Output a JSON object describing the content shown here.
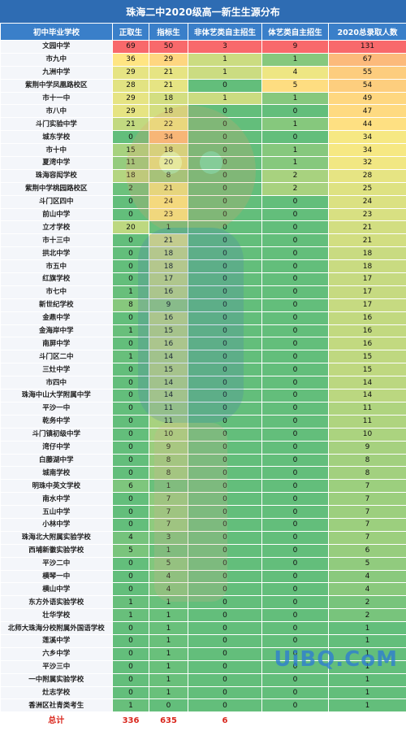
{
  "title": "珠海二中2020级高一新生生源分布",
  "columns": [
    "初中毕业学校",
    "正取生",
    "指标生",
    "非体艺类自主招生",
    "体艺类自主招生",
    "2020总录取人数"
  ],
  "rows": [
    {
      "school": "文园中学",
      "v": [
        "69",
        "50",
        "3",
        "9",
        "131"
      ]
    },
    {
      "school": "市九中",
      "v": [
        "36",
        "29",
        "1",
        "1",
        "67"
      ]
    },
    {
      "school": "九洲中学",
      "v": [
        "29",
        "21",
        "1",
        "4",
        "55"
      ]
    },
    {
      "school": "紫荆中学凤凰路校区",
      "v": [
        "28",
        "21",
        "0",
        "5",
        "54"
      ]
    },
    {
      "school": "市十一中",
      "v": [
        "29",
        "18",
        "1",
        "1",
        "49"
      ]
    },
    {
      "school": "市八中",
      "v": [
        "29",
        "18",
        "0",
        "0",
        "47"
      ]
    },
    {
      "school": "斗门实验中学",
      "v": [
        "21",
        "22",
        "0",
        "1",
        "44"
      ]
    },
    {
      "school": "城东学校",
      "v": [
        "0",
        "34",
        "0",
        "0",
        "34"
      ]
    },
    {
      "school": "市十中",
      "v": [
        "15",
        "18",
        "0",
        "1",
        "34"
      ]
    },
    {
      "school": "夏湾中学",
      "v": [
        "11",
        "20",
        "0",
        "1",
        "32"
      ]
    },
    {
      "school": "珠海容闳学校",
      "v": [
        "18",
        "8",
        "0",
        "2",
        "28"
      ]
    },
    {
      "school": "紫荆中学桃园路校区",
      "v": [
        "2",
        "21",
        "0",
        "2",
        "25"
      ]
    },
    {
      "school": "斗门区四中",
      "v": [
        "0",
        "24",
        "0",
        "0",
        "24"
      ]
    },
    {
      "school": "前山中学",
      "v": [
        "0",
        "23",
        "0",
        "0",
        "23"
      ]
    },
    {
      "school": "立才学校",
      "v": [
        "20",
        "1",
        "0",
        "0",
        "21"
      ]
    },
    {
      "school": "市十三中",
      "v": [
        "0",
        "21",
        "0",
        "0",
        "21"
      ]
    },
    {
      "school": "拱北中学",
      "v": [
        "0",
        "18",
        "0",
        "0",
        "18"
      ]
    },
    {
      "school": "市五中",
      "v": [
        "0",
        "18",
        "0",
        "0",
        "18"
      ]
    },
    {
      "school": "红旗学校",
      "v": [
        "0",
        "17",
        "0",
        "0",
        "17"
      ]
    },
    {
      "school": "市七中",
      "v": [
        "1",
        "16",
        "0",
        "0",
        "17"
      ]
    },
    {
      "school": "新世纪学校",
      "v": [
        "8",
        "9",
        "0",
        "0",
        "17"
      ]
    },
    {
      "school": "金鼎中学",
      "v": [
        "0",
        "16",
        "0",
        "0",
        "16"
      ]
    },
    {
      "school": "金海岸中学",
      "v": [
        "1",
        "15",
        "0",
        "0",
        "16"
      ]
    },
    {
      "school": "南屏中学",
      "v": [
        "0",
        "16",
        "0",
        "0",
        "16"
      ]
    },
    {
      "school": "斗门区二中",
      "v": [
        "1",
        "14",
        "0",
        "0",
        "15"
      ]
    },
    {
      "school": "三灶中学",
      "v": [
        "0",
        "15",
        "0",
        "0",
        "15"
      ]
    },
    {
      "school": "市四中",
      "v": [
        "0",
        "14",
        "0",
        "0",
        "14"
      ]
    },
    {
      "school": "珠海中山大学附属中学",
      "v": [
        "0",
        "14",
        "0",
        "0",
        "14"
      ]
    },
    {
      "school": "平沙一中",
      "v": [
        "0",
        "11",
        "0",
        "0",
        "11"
      ]
    },
    {
      "school": "乾务中学",
      "v": [
        "0",
        "11",
        "0",
        "0",
        "11"
      ]
    },
    {
      "school": "斗门镇初级中学",
      "v": [
        "0",
        "10",
        "0",
        "0",
        "10"
      ]
    },
    {
      "school": "湾仔中学",
      "v": [
        "0",
        "9",
        "0",
        "0",
        "9"
      ]
    },
    {
      "school": "白藤湖中学",
      "v": [
        "0",
        "8",
        "0",
        "0",
        "8"
      ]
    },
    {
      "school": "城南学校",
      "v": [
        "0",
        "8",
        "0",
        "0",
        "8"
      ]
    },
    {
      "school": "明珠中英文学校",
      "v": [
        "6",
        "1",
        "0",
        "0",
        "7"
      ]
    },
    {
      "school": "南水中学",
      "v": [
        "0",
        "7",
        "0",
        "0",
        "7"
      ]
    },
    {
      "school": "五山中学",
      "v": [
        "0",
        "7",
        "0",
        "0",
        "7"
      ]
    },
    {
      "school": "小林中学",
      "v": [
        "0",
        "7",
        "0",
        "0",
        "7"
      ]
    },
    {
      "school": "珠海北大附属实验学校",
      "v": [
        "4",
        "3",
        "0",
        "0",
        "7"
      ]
    },
    {
      "school": "西埔新徽实验学校",
      "v": [
        "5",
        "1",
        "0",
        "0",
        "6"
      ]
    },
    {
      "school": "平沙二中",
      "v": [
        "0",
        "5",
        "0",
        "0",
        "5"
      ]
    },
    {
      "school": "横琴一中",
      "v": [
        "0",
        "4",
        "0",
        "0",
        "4"
      ]
    },
    {
      "school": "横山中学",
      "v": [
        "0",
        "4",
        "0",
        "0",
        "4"
      ]
    },
    {
      "school": "东方外语实验学校",
      "v": [
        "1",
        "1",
        "0",
        "0",
        "2"
      ]
    },
    {
      "school": "壮华学校",
      "v": [
        "1",
        "1",
        "0",
        "0",
        "2"
      ]
    },
    {
      "school": "北师大珠海分校附属外国语学校",
      "v": [
        "0",
        "1",
        "0",
        "0",
        "1"
      ]
    },
    {
      "school": "莲溪中学",
      "v": [
        "0",
        "1",
        "0",
        "0",
        "1"
      ]
    },
    {
      "school": "六乡中学",
      "v": [
        "0",
        "1",
        "0",
        "0",
        "1"
      ]
    },
    {
      "school": "平沙三中",
      "v": [
        "0",
        "1",
        "0",
        "0",
        "1"
      ]
    },
    {
      "school": "一中附属实验学校",
      "v": [
        "0",
        "1",
        "0",
        "0",
        "1"
      ]
    },
    {
      "school": "灶志学校",
      "v": [
        "0",
        "1",
        "0",
        "0",
        "1"
      ]
    },
    {
      "school": "香洲区社青类考生",
      "v": [
        "1",
        "0",
        "0",
        "0",
        "1"
      ]
    }
  ],
  "total": {
    "label": "总计",
    "v": [
      "336",
      "635",
      "6",
      "",
      ""
    ]
  },
  "watermark": "UiBQ.CoM"
}
